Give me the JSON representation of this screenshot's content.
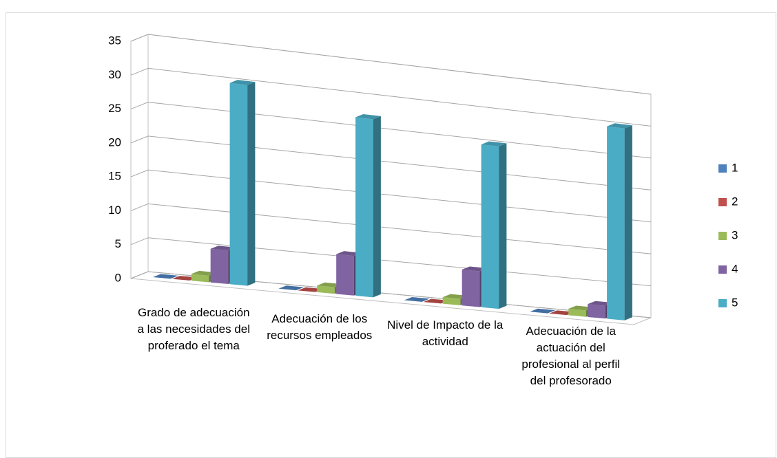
{
  "chart_data": {
    "type": "bar3d",
    "categories": [
      "Grado de adecuación a las necesidades del proferado el tema",
      "Adecuación de los recursos empleados",
      "Nivel de Impacto de la actividad",
      "Adecuación de la actuación del profesional al perfil del profesorado"
    ],
    "series": [
      {
        "name": "1",
        "color": "#4f81bd",
        "values": [
          0,
          0,
          0,
          0
        ]
      },
      {
        "name": "2",
        "color": "#c0504d",
        "values": [
          0,
          0,
          0,
          0
        ]
      },
      {
        "name": "3",
        "color": "#9bbb59",
        "values": [
          1,
          1,
          1,
          1
        ]
      },
      {
        "name": "4",
        "color": "#8064a2",
        "values": [
          5,
          6,
          5.5,
          2
        ]
      },
      {
        "name": "5",
        "color": "#4bacc6",
        "values": [
          30,
          27,
          25,
          30
        ]
      }
    ],
    "ylim": [
      0,
      35
    ],
    "yticks": [
      0,
      5,
      10,
      15,
      20,
      25,
      30,
      35
    ],
    "grid": true,
    "legend": "right"
  }
}
